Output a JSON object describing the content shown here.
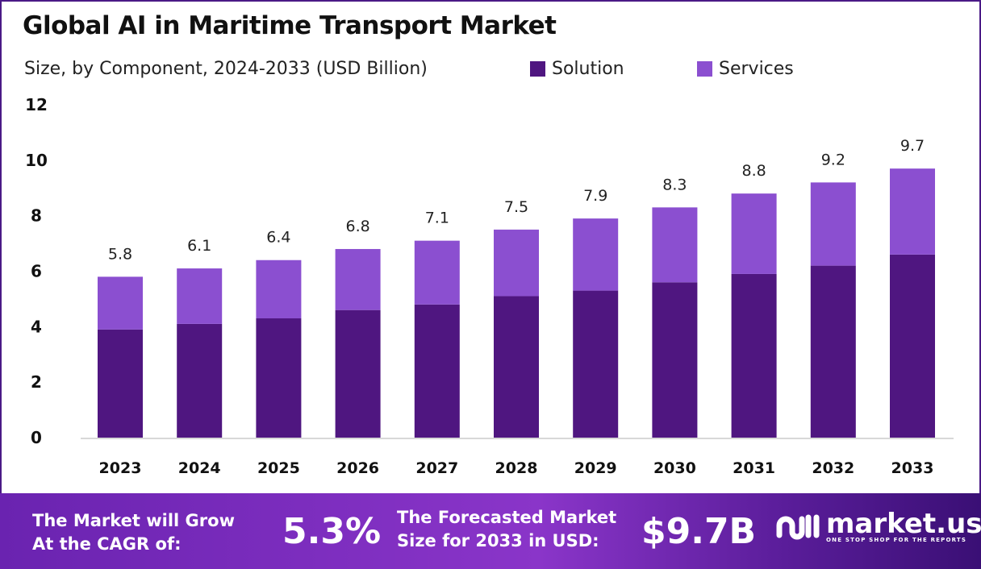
{
  "title": "Global AI in Maritime Transport Market",
  "subtitle": "Size, by Component, 2024-2033 (USD Billion)",
  "colors": {
    "solution": "#4f1680",
    "services": "#8b4fd0"
  },
  "chart_data": {
    "type": "bar",
    "stacked": true,
    "title": "Global AI in Maritime Transport Market",
    "subtitle": "Size, by Component, 2024-2033 (USD Billion)",
    "categories": [
      "2023",
      "2024",
      "2025",
      "2026",
      "2027",
      "2028",
      "2029",
      "2030",
      "2031",
      "2032",
      "2033"
    ],
    "series": [
      {
        "name": "Solution",
        "values": [
          3.9,
          4.1,
          4.3,
          4.6,
          4.8,
          5.1,
          5.3,
          5.6,
          5.9,
          6.2,
          6.6
        ]
      },
      {
        "name": "Services",
        "values": [
          1.9,
          2.0,
          2.1,
          2.2,
          2.3,
          2.4,
          2.6,
          2.7,
          2.9,
          3.0,
          3.1
        ]
      }
    ],
    "totals": [
      "5.8",
      "6.1",
      "6.4",
      "6.8",
      "7.1",
      "7.5",
      "7.9",
      "8.3",
      "8.8",
      "9.2",
      "9.7"
    ],
    "yticks": [
      "0",
      "2",
      "4",
      "6",
      "8",
      "10",
      "12"
    ],
    "ylim": [
      0,
      12
    ],
    "grid": false,
    "legend": "top"
  },
  "footer": {
    "cagr_label_1": "The Market will Grow",
    "cagr_label_2": "At the CAGR of:",
    "cagr_value": "5.3%",
    "size_label_1": "The Forecasted Market",
    "size_label_2": "Size for 2033 in USD:",
    "size_value": "$9.7B",
    "logo_name": "market.us",
    "logo_tagline": "ONE STOP SHOP FOR THE REPORTS"
  }
}
